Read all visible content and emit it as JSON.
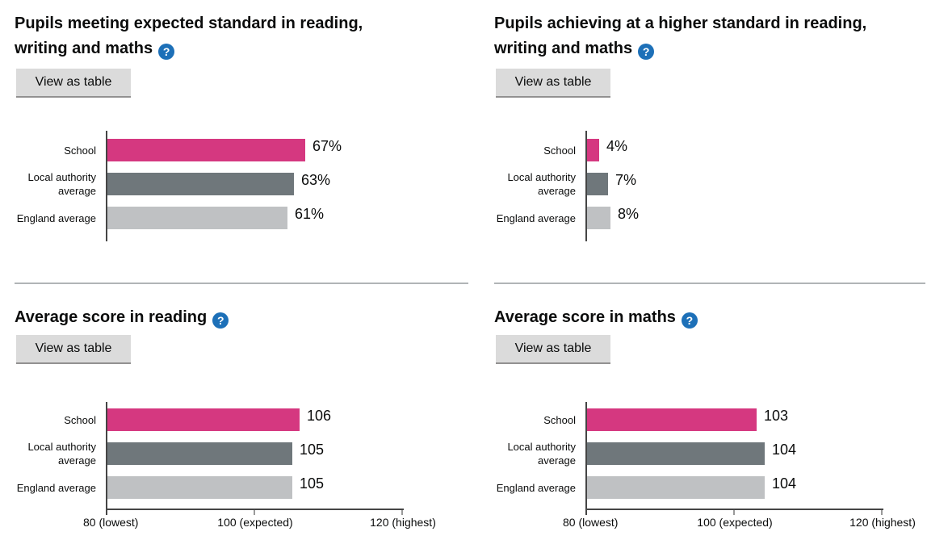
{
  "shared": {
    "view_as_table": "View as table",
    "help_glyph": "?"
  },
  "colors": {
    "bar_school": "#d53880",
    "bar_local_authority": "#6f777b",
    "bar_england": "#bfc1c3",
    "help_icon_bg": "#1d70b8",
    "text": "#0b0c0c",
    "axis": "#454545",
    "divider": "#b1b4b6"
  },
  "bar_colors": [
    "#d53880",
    "#6f777b",
    "#bfc1c3"
  ],
  "chart_data": [
    {
      "type": "bar",
      "orientation": "horizontal",
      "title": "Pupils meeting expected standard in reading, writing and maths",
      "categories": [
        "School",
        "Local authority average",
        "England average"
      ],
      "values": [
        67,
        63,
        61
      ],
      "value_labels": [
        "67%",
        "63%",
        "61%"
      ],
      "xlim": [
        0,
        100
      ],
      "axis_ticks": []
    },
    {
      "type": "bar",
      "orientation": "horizontal",
      "title": "Pupils achieving at a higher standard in reading, writing and maths",
      "categories": [
        "School",
        "Local authority average",
        "England average"
      ],
      "values": [
        4,
        7,
        8
      ],
      "value_labels": [
        "4%",
        "7%",
        "8%"
      ],
      "xlim": [
        0,
        100
      ],
      "axis_ticks": []
    },
    {
      "type": "bar",
      "orientation": "horizontal",
      "title": "Average score in reading",
      "categories": [
        "School",
        "Local authority average",
        "England average"
      ],
      "values": [
        106,
        105,
        105
      ],
      "value_labels": [
        "106",
        "105",
        "105"
      ],
      "xlim": [
        80,
        120
      ],
      "axis_ticks": [
        {
          "value": 80,
          "label": "80 (lowest)"
        },
        {
          "value": 100,
          "label": "100 (expected)"
        },
        {
          "value": 120,
          "label": "120 (highest)"
        }
      ]
    },
    {
      "type": "bar",
      "orientation": "horizontal",
      "title": "Average score in maths",
      "categories": [
        "School",
        "Local authority average",
        "England average"
      ],
      "values": [
        103,
        104,
        104
      ],
      "value_labels": [
        "103",
        "104",
        "104"
      ],
      "xlim": [
        80,
        120
      ],
      "axis_ticks": [
        {
          "value": 80,
          "label": "80 (lowest)"
        },
        {
          "value": 100,
          "label": "100 (expected)"
        },
        {
          "value": 120,
          "label": "120 (highest)"
        }
      ]
    }
  ]
}
